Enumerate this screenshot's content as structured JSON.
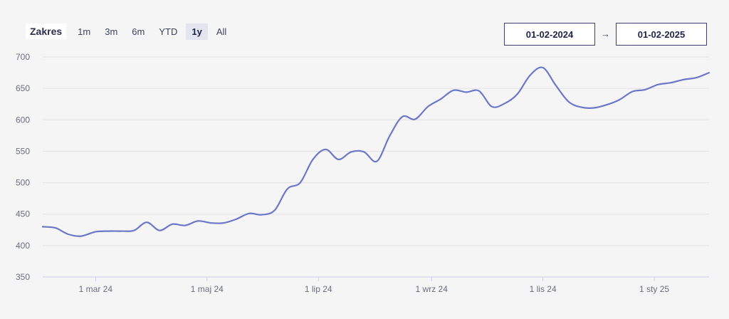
{
  "range_selector": {
    "label": "Zakres",
    "options": [
      "1m",
      "3m",
      "6m",
      "YTD",
      "1y",
      "All"
    ],
    "selected": "1y"
  },
  "date_range": {
    "from": "01-02-2024",
    "arrow": "→",
    "to": "01-02-2025"
  },
  "colors": {
    "line": "#6b78c8",
    "grid": "#e2e2e6",
    "axis": "#c9cfe6"
  },
  "chart_data": {
    "type": "line",
    "title": "",
    "xlabel": "",
    "ylabel": "",
    "ylim": [
      350,
      700
    ],
    "yticks": [
      350,
      400,
      450,
      500,
      550,
      600,
      650,
      700
    ],
    "x_ticks": [
      {
        "label": "1 mar 24",
        "date": "2024-03-01"
      },
      {
        "label": "1 maj 24",
        "date": "2024-05-01"
      },
      {
        "label": "1 lip 24",
        "date": "2024-07-01"
      },
      {
        "label": "1 wrz 24",
        "date": "2024-09-01"
      },
      {
        "label": "1 lis 24",
        "date": "2024-11-01"
      },
      {
        "label": "1 sty 25",
        "date": "2025-01-01"
      }
    ],
    "grid": true,
    "series": [
      {
        "points": [
          [
            "2024-02-01",
            430
          ],
          [
            "2024-02-08",
            428
          ],
          [
            "2024-02-15",
            418
          ],
          [
            "2024-02-22",
            415
          ],
          [
            "2024-03-01",
            422
          ],
          [
            "2024-03-08",
            423
          ],
          [
            "2024-03-15",
            423
          ],
          [
            "2024-03-22",
            424
          ],
          [
            "2024-03-29",
            437
          ],
          [
            "2024-04-05",
            424
          ],
          [
            "2024-04-12",
            434
          ],
          [
            "2024-04-19",
            432
          ],
          [
            "2024-04-26",
            439
          ],
          [
            "2024-05-03",
            436
          ],
          [
            "2024-05-10",
            436
          ],
          [
            "2024-05-17",
            442
          ],
          [
            "2024-05-24",
            451
          ],
          [
            "2024-05-31",
            449
          ],
          [
            "2024-06-07",
            456
          ],
          [
            "2024-06-14",
            490
          ],
          [
            "2024-06-21",
            500
          ],
          [
            "2024-06-28",
            537
          ],
          [
            "2024-07-05",
            553
          ],
          [
            "2024-07-12",
            537
          ],
          [
            "2024-07-19",
            549
          ],
          [
            "2024-07-26",
            549
          ],
          [
            "2024-08-02",
            534
          ],
          [
            "2024-08-09",
            574
          ],
          [
            "2024-08-16",
            605
          ],
          [
            "2024-08-23",
            601
          ],
          [
            "2024-08-30",
            621
          ],
          [
            "2024-09-06",
            633
          ],
          [
            "2024-09-13",
            647
          ],
          [
            "2024-09-20",
            644
          ],
          [
            "2024-09-27",
            646
          ],
          [
            "2024-10-04",
            621
          ],
          [
            "2024-10-11",
            626
          ],
          [
            "2024-10-18",
            641
          ],
          [
            "2024-10-25",
            671
          ],
          [
            "2024-11-01",
            683
          ],
          [
            "2024-11-08",
            655
          ],
          [
            "2024-11-15",
            629
          ],
          [
            "2024-11-22",
            620
          ],
          [
            "2024-11-29",
            619
          ],
          [
            "2024-12-06",
            624
          ],
          [
            "2024-12-13",
            632
          ],
          [
            "2024-12-20",
            645
          ],
          [
            "2024-12-27",
            648
          ],
          [
            "2025-01-03",
            656
          ],
          [
            "2025-01-10",
            659
          ],
          [
            "2025-01-17",
            664
          ],
          [
            "2025-01-24",
            667
          ],
          [
            "2025-01-31",
            675
          ]
        ]
      }
    ]
  }
}
